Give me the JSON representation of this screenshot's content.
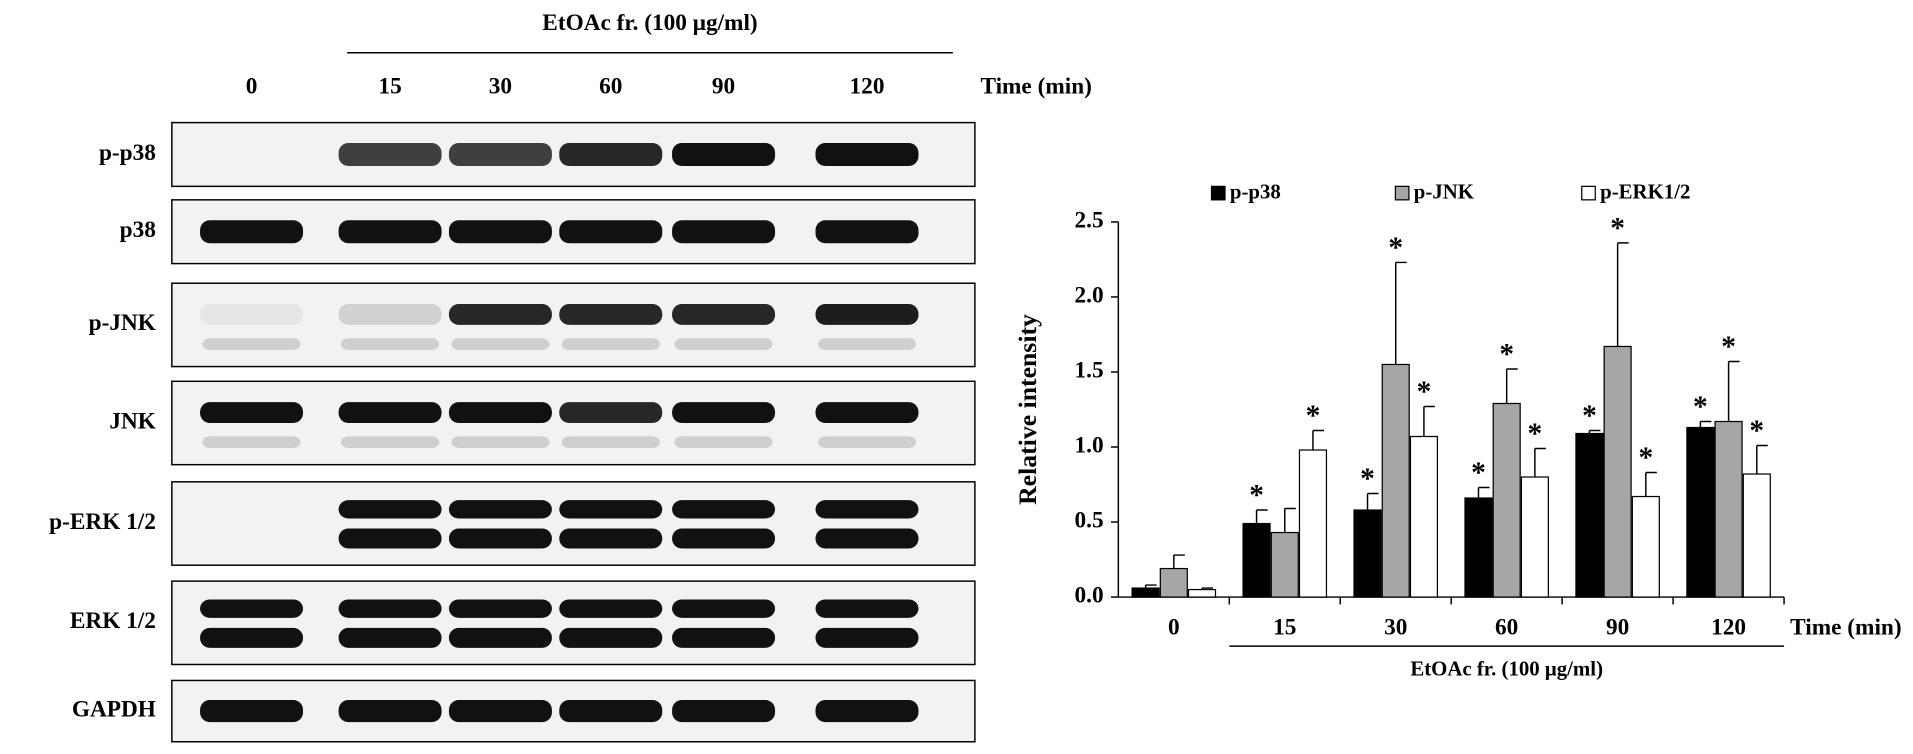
{
  "blot": {
    "title": "EtOAc fr. (100 μg/ml)",
    "lanes": [
      "0",
      "15",
      "30",
      "60",
      "90",
      "120"
    ],
    "time_label": "Time (min)",
    "rows": [
      "p-p38",
      "p38",
      "p-JNK",
      "JNK",
      "p-ERK 1/2",
      "ERK 1/2",
      "GAPDH"
    ]
  },
  "chart_data": {
    "type": "bar",
    "categories": [
      "0",
      "15",
      "30",
      "60",
      "90",
      "120"
    ],
    "xlabel": "Time (min)",
    "ylabel": "Relative intensity",
    "group_label": "EtOAc fr. (100 μg/ml)",
    "ylim": [
      0,
      2.5
    ],
    "yticks": [
      {
        "value": 0,
        "label": "0.0"
      },
      0.5,
      {
        "value": 1,
        "label": "1.0"
      },
      1.5,
      {
        "value": 2,
        "label": "2.0"
      },
      2.5
    ],
    "legend": "top",
    "series": [
      {
        "name": "p-p38",
        "color": "#000000",
        "values": [
          0.06,
          0.49,
          0.58,
          0.66,
          1.09,
          1.13
        ],
        "errors": [
          0.02,
          0.09,
          0.11,
          0.07,
          0.02,
          0.04
        ],
        "significance": [
          null,
          "*",
          "*",
          "*",
          "*",
          "*"
        ]
      },
      {
        "name": "p-JNK",
        "color": "#a6a6a6",
        "values": [
          0.19,
          0.43,
          1.55,
          1.29,
          1.67,
          1.17
        ],
        "errors": [
          0.09,
          0.16,
          0.68,
          0.23,
          0.69,
          0.4
        ],
        "significance": [
          null,
          null,
          "*",
          "*",
          "*",
          "*"
        ]
      },
      {
        "name": "p-ERK1/2",
        "color": "#ffffff",
        "values": [
          0.05,
          0.98,
          1.07,
          0.8,
          0.67,
          0.82
        ],
        "errors": [
          0.01,
          0.13,
          0.2,
          0.19,
          0.16,
          0.19
        ],
        "significance": [
          null,
          "*",
          "*",
          "*",
          "*",
          "*"
        ]
      }
    ]
  }
}
